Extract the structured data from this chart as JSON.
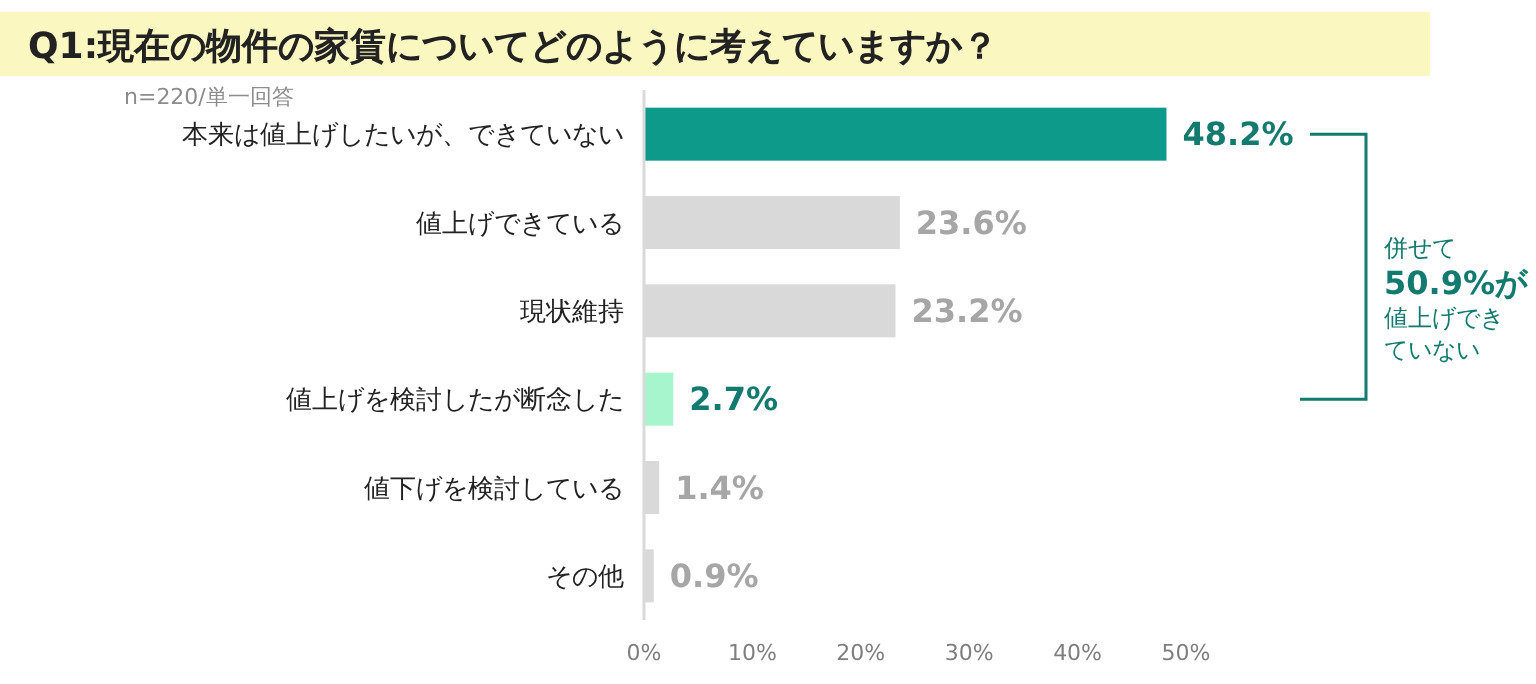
{
  "chart_data": {
    "type": "bar",
    "orientation": "horizontal",
    "title": "Q1:現在の物件の家賃についてどのように考えていますか？",
    "subtitle": "n=220/単一回答",
    "categories": [
      "本来は値上げしたいが、できていない",
      "値上げできている",
      "現状維持",
      "値上げを検討したが断念した",
      "値下げを検討している",
      "その他"
    ],
    "values": [
      48.2,
      23.6,
      23.2,
      2.7,
      1.4,
      0.9
    ],
    "colors": [
      "#0e9a8a",
      "#d9d9d9",
      "#d9d9d9",
      "#a6f5cc",
      "#d9d9d9",
      "#d9d9d9"
    ],
    "value_labels": [
      "48.2%",
      "23.6%",
      "23.2%",
      "2.7%",
      "1.4%",
      "0.9%"
    ],
    "xlim": [
      0,
      50
    ],
    "xticks": [
      {
        "value": 0,
        "label": "0%"
      },
      {
        "value": 10,
        "label": "10%"
      },
      {
        "value": 20,
        "label": "20%"
      },
      {
        "value": 30,
        "label": "30%"
      },
      {
        "value": 40,
        "label": "40%"
      },
      {
        "value": 50,
        "label": "50%"
      }
    ],
    "annotations": [
      "併せて50.9%が値上げできていない"
    ],
    "grid": false
  }
}
